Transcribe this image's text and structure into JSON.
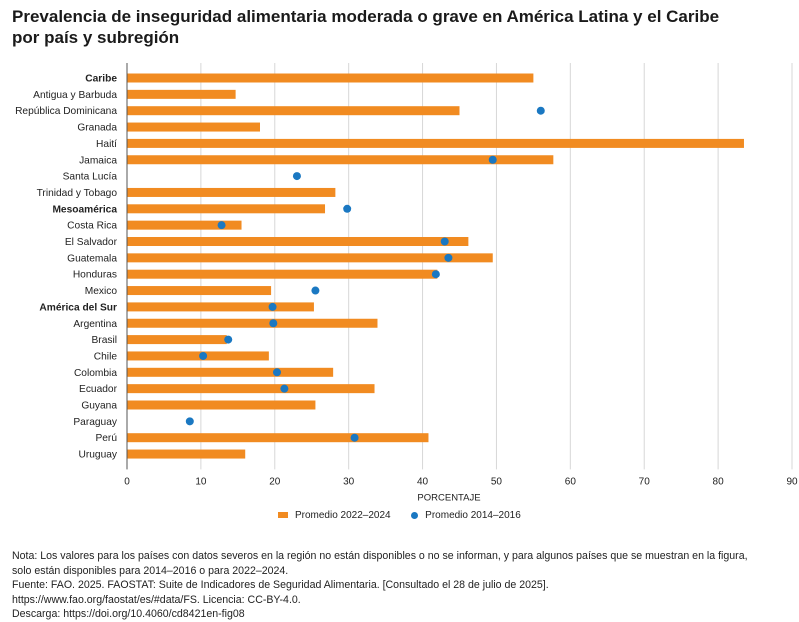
{
  "title_line1": "Prevalencia de inseguridad alimentaria moderada o grave en América Latina y el Caribe",
  "title_line2": "por país y subregión",
  "colors": {
    "bar": "#f18b21",
    "dot": "#1a78c2",
    "grid": "#d7d7d7",
    "axis": "#555555"
  },
  "chart_data": {
    "type": "bar",
    "orientation": "horizontal",
    "xlabel": "PORCENTAJE",
    "xlim": [
      0,
      90
    ],
    "xticks": [
      0,
      10,
      20,
      30,
      40,
      50,
      60,
      70,
      80,
      90
    ],
    "grid": true,
    "legend_position": "bottom",
    "categories": [
      "Caribe",
      "Antigua y Barbuda",
      "República Dominicana",
      "Granada",
      "Haití",
      "Jamaica",
      "Santa Lucía",
      "Trinidad y Tobago",
      "Mesoamérica",
      "Costa Rica",
      "El Salvador",
      "Guatemala",
      "Honduras",
      "Mexico",
      "América del Sur",
      "Argentina",
      "Brasil",
      "Chile",
      "Colombia",
      "Ecuador",
      "Guyana",
      "Paraguay",
      "Perú",
      "Uruguay"
    ],
    "bold_categories": [
      "Caribe",
      "Mesoamérica",
      "América del Sur"
    ],
    "series": [
      {
        "name": "Promedio 2022–2024",
        "kind": "bar",
        "values": [
          55,
          14.7,
          45,
          18,
          83.5,
          57.7,
          null,
          28.2,
          26.8,
          15.5,
          46.2,
          49.5,
          42,
          19.5,
          25.3,
          33.9,
          13.5,
          19.2,
          27.9,
          33.5,
          25.5,
          null,
          40.8,
          16
        ]
      },
      {
        "name": "Promedio 2014–2016",
        "kind": "dot",
        "values": [
          null,
          null,
          56,
          null,
          null,
          49.5,
          23,
          null,
          29.8,
          12.8,
          43,
          43.5,
          41.8,
          25.5,
          19.7,
          19.8,
          13.7,
          10.3,
          20.3,
          21.3,
          null,
          8.5,
          30.8,
          null
        ]
      }
    ]
  },
  "notes": [
    "Nota: Los valores para los países con datos severos en la región no están disponibles o no se informan, y para algunos países que se muestran en la figura,",
    "solo están disponibles para 2014–2016 o para 2022–2024.",
    "Fuente: FAO. 2025. FAOSTAT: Suite de Indicadores de Seguridad Alimentaria. [Consultado el 28 de julio de 2025].",
    "https://www.fao.org/faostat/es/#data/FS. Licencia: CC-BY-4.0.",
    "Descarga: https://doi.org/10.4060/cd8421en-fig08"
  ]
}
